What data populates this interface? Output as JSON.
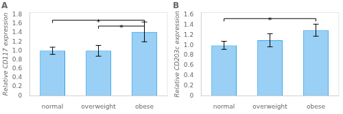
{
  "chart_data": [
    {
      "type": "bar",
      "title": "A",
      "y_label": "Relative CD117 expression",
      "categories": [
        "normal",
        "overweight",
        "obese"
      ],
      "values": [
        1.0,
        1.0,
        1.42
      ],
      "errors": [
        0.08,
        0.12,
        0.22
      ],
      "ylim": [
        0,
        1.85
      ],
      "yticks": [
        0,
        0.2,
        0.4,
        0.6,
        0.8,
        {
          "value": 1.0,
          "label": "1.0"
        },
        1.2,
        1.4,
        1.6,
        1.8
      ],
      "grid": false,
      "annotations": [
        {
          "x1": "normal",
          "x2": "obese",
          "y": 1.68,
          "text": "*"
        },
        {
          "x1": "overweight",
          "x2": "obese",
          "y": 1.55,
          "text": "*"
        }
      ]
    },
    {
      "type": "bar",
      "title": "B",
      "y_label": "Relative CD203c expression",
      "categories": [
        "normal",
        "overweight",
        "obese"
      ],
      "values": [
        1.0,
        1.1,
        1.3
      ],
      "errors": [
        0.08,
        0.13,
        0.12
      ],
      "ylim": [
        0,
        1.65
      ],
      "yticks": [
        0,
        0.2,
        0.4,
        0.6,
        0.8,
        {
          "value": 1.0,
          "label": "1.0"
        },
        1.2,
        1.4,
        1.6
      ],
      "grid": false,
      "annotations": [
        {
          "x1": "normal",
          "x2": "obese",
          "y": 1.53,
          "text": "*"
        }
      ]
    }
  ]
}
